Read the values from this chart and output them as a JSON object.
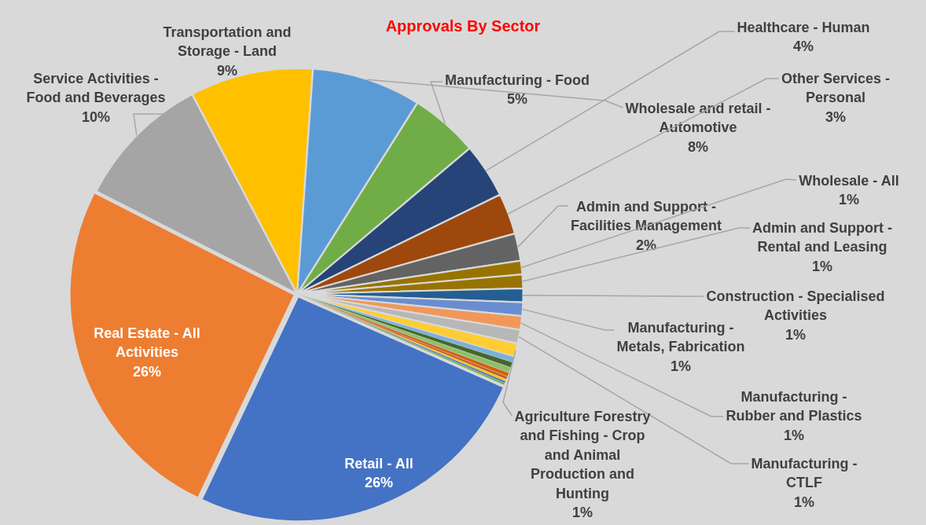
{
  "chart_data": {
    "type": "pie",
    "title": "Approvals By Sector",
    "categories": [
      "Wholesale and retail - Automotive",
      "Manufacturing - Food",
      "Healthcare - Human",
      "Other Services - Personal",
      "Admin and Support - Facilities Management",
      "Wholesale - All",
      "Admin and Support - Rental and Leasing",
      "Construction - Specialised Activities",
      "Manufacturing - Metals, Fabrication",
      "Manufacturing - Rubber and Plastics",
      "Manufacturing - CTLF",
      "Agriculture Forestry and Fishing - Crop and Animal Production and Hunting",
      null,
      null,
      null,
      null,
      null,
      null,
      null,
      null,
      "Retail - All",
      "Real Estate - All Activities",
      "Service Activities - Food and Beverages",
      "Transportation and Storage - Land"
    ],
    "values": [
      8,
      5,
      4,
      3,
      2,
      1,
      1,
      1,
      1,
      1,
      1,
      1,
      0.4,
      0.4,
      0.4,
      0.3,
      0.2,
      0.15,
      0.15,
      0.15,
      26,
      26,
      10,
      9
    ],
    "colors": [
      "#5b9bd5",
      "#70ad47",
      "#264478",
      "#9e480e",
      "#636363",
      "#997300",
      "#997300",
      "#255e91",
      "#698ed0",
      "#f1975a",
      "#b7b7b7",
      "#ffcd33",
      "#7cafdd",
      "#43682b",
      "#8cc168",
      "#d26012",
      "#c55a11",
      "#ffc000",
      "#4472c4",
      "#70ad47",
      "#4472c4",
      "#ed7d31",
      "#a5a5a5",
      "#ffc000"
    ],
    "value_labels": [
      "8%",
      "5%",
      "4%",
      "3%",
      "2%",
      "1%",
      "1%",
      "1%",
      "1%",
      "1%",
      "1%",
      "1%",
      null,
      null,
      null,
      null,
      null,
      null,
      null,
      null,
      "26%",
      "26%",
      "10%",
      "9%"
    ]
  }
}
